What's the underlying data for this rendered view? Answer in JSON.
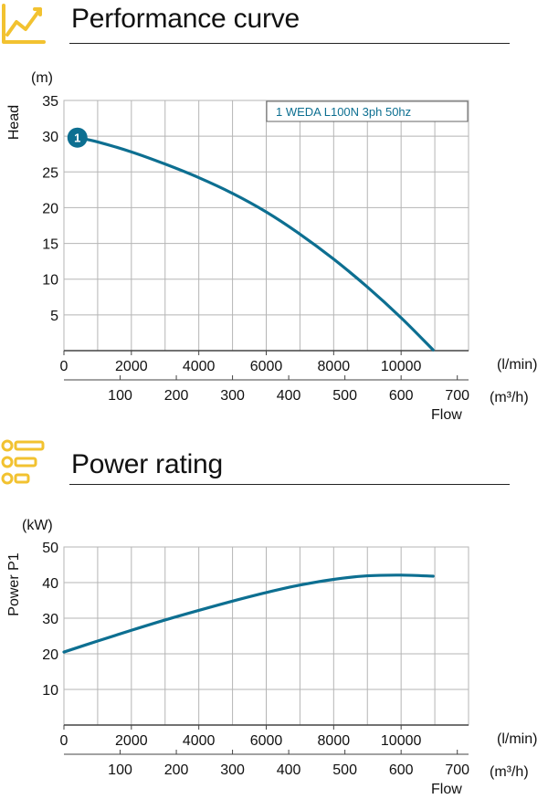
{
  "sections": {
    "performance": {
      "title": "Performance curve"
    },
    "power": {
      "title": "Power rating"
    }
  },
  "colors": {
    "curve": "#0d6f91",
    "accent_icon": "#f2c230",
    "grid": "#b5b5b5",
    "axis": "#444444"
  },
  "icons": {
    "performance": "line-chart-icon",
    "power": "list-rating-icon"
  },
  "chart_data": [
    {
      "type": "line",
      "title": "",
      "xlabel": "Flow",
      "ylabel": "Head",
      "y_unit": "(m)",
      "x_unit": "(l/min)",
      "x2_unit": "(m³/h)",
      "xlim": [
        0,
        12000
      ],
      "ylim": [
        0,
        35
      ],
      "x_ticks": [
        "0",
        "2000",
        "4000",
        "6000",
        "8000",
        "10000"
      ],
      "x_tick_values": [
        0,
        2000,
        4000,
        6000,
        8000,
        10000
      ],
      "x2_ticks": [
        "100",
        "200",
        "300",
        "400",
        "500",
        "600",
        "700"
      ],
      "x2_tick_values": [
        100,
        200,
        300,
        400,
        500,
        600,
        700
      ],
      "y_ticks": [
        "5",
        "10",
        "15",
        "20",
        "25",
        "30",
        "35"
      ],
      "y_tick_values": [
        5,
        10,
        15,
        20,
        25,
        30,
        35
      ],
      "grid": true,
      "legend": {
        "label": "1 WEDA L100N 3ph 50hz",
        "position": "top-right"
      },
      "marker": {
        "label": "1",
        "x": 400,
        "y": 29.8
      },
      "series": [
        {
          "name": "1 WEDA L100N 3ph 50hz",
          "x": [
            400,
            1000,
            2000,
            3000,
            4000,
            5000,
            6000,
            7000,
            8000,
            9000,
            10000,
            10950
          ],
          "y": [
            29.8,
            29.2,
            27.8,
            26.1,
            24.2,
            22.0,
            19.4,
            16.3,
            12.8,
            8.9,
            4.6,
            0.1
          ]
        }
      ]
    },
    {
      "type": "line",
      "title": "",
      "xlabel": "Flow",
      "ylabel": "Power P1",
      "y_unit": "(kW)",
      "x_unit": "(l/min)",
      "x2_unit": "(m³/h)",
      "xlim": [
        0,
        12000
      ],
      "ylim": [
        0,
        50
      ],
      "x_ticks": [
        "0",
        "2000",
        "4000",
        "6000",
        "8000",
        "10000"
      ],
      "x_tick_values": [
        0,
        2000,
        4000,
        6000,
        8000,
        10000
      ],
      "x2_ticks": [
        "100",
        "200",
        "300",
        "400",
        "500",
        "600",
        "700"
      ],
      "x2_tick_values": [
        100,
        200,
        300,
        400,
        500,
        600,
        700
      ],
      "y_ticks": [
        "10",
        "20",
        "30",
        "40",
        "50"
      ],
      "y_tick_values": [
        10,
        20,
        30,
        40,
        50
      ],
      "grid": true,
      "series": [
        {
          "name": "",
          "x": [
            0,
            1000,
            2000,
            3000,
            4000,
            5000,
            6000,
            7000,
            8000,
            9000,
            10000,
            10950
          ],
          "y": [
            20.5,
            23.6,
            26.6,
            29.5,
            32.2,
            34.8,
            37.2,
            39.3,
            40.9,
            41.9,
            42.1,
            41.8
          ]
        }
      ]
    }
  ]
}
